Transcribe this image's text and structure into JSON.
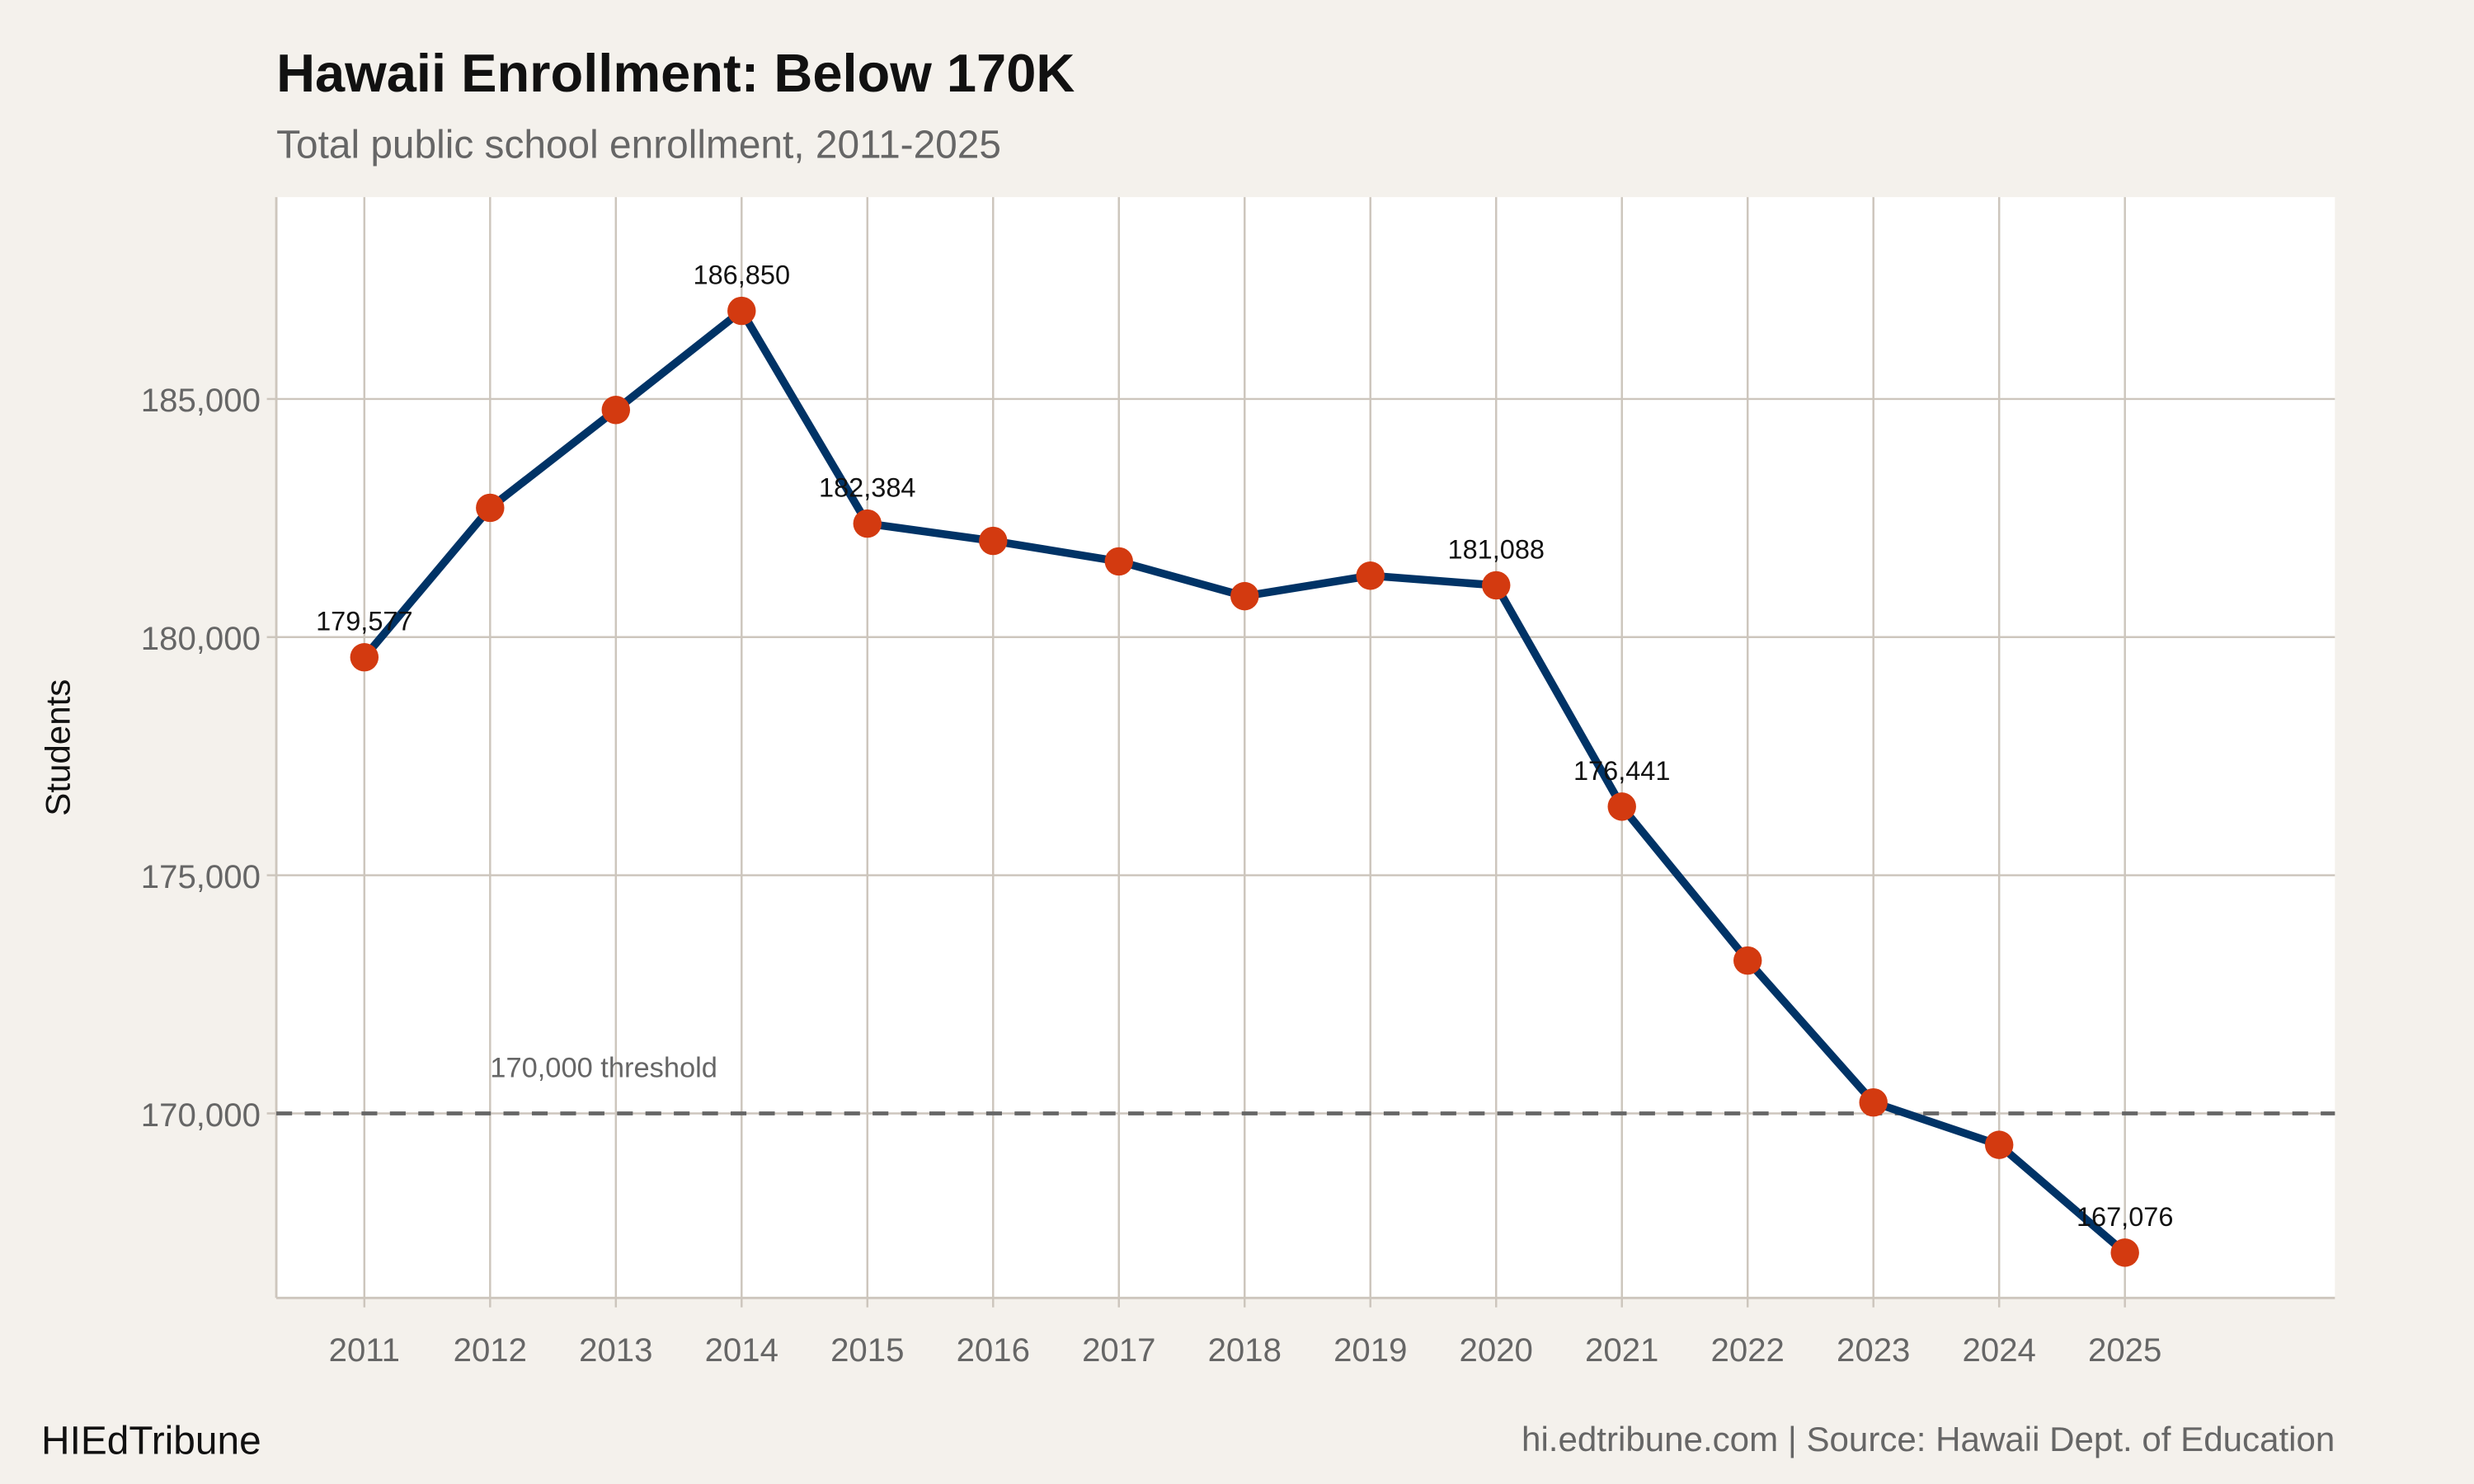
{
  "title": "Hawaii Enrollment: Below 170K",
  "subtitle": "Total public school enrollment, 2011-2025",
  "footer_left": "HIEdTribune",
  "footer_right": "hi.edtribune.com | Source: Hawaii Dept. of Education",
  "colors": {
    "background": "#f4f1ec",
    "panel": "#ffffff",
    "grid": "#cdc6bd",
    "line": "#003366",
    "point": "#d33a10",
    "threshold": "#666666"
  },
  "chart_data": {
    "type": "line",
    "title": "Hawaii Enrollment: Below 170K",
    "subtitle": "Total public school enrollment, 2011-2025",
    "xlabel": "",
    "ylabel": "Students",
    "x": [
      2011,
      2012,
      2013,
      2014,
      2015,
      2016,
      2017,
      2018,
      2019,
      2020,
      2021,
      2022,
      2023,
      2024,
      2025
    ],
    "values": [
      179577,
      182715,
      184770,
      186850,
      182384,
      182020,
      181590,
      180860,
      181290,
      181088,
      176441,
      173210,
      170230,
      169340,
      167076
    ],
    "data_labels": {
      "2011": "179,577",
      "2014": "186,850",
      "2015": "182,384",
      "2020": "181,088",
      "2021": "176,441",
      "2025": "167,076"
    },
    "xlim": [
      2010.3,
      2026.67
    ],
    "ylim": [
      166126,
      189238
    ],
    "yticks": [
      170000,
      175000,
      180000,
      185000
    ],
    "ytick_labels": [
      "170,000",
      "175,000",
      "180,000",
      "185,000"
    ],
    "xtick_labels": [
      "2011",
      "2012",
      "2013",
      "2014",
      "2015",
      "2016",
      "2017",
      "2018",
      "2019",
      "2020",
      "2021",
      "2022",
      "2023",
      "2024",
      "2025"
    ],
    "grid": true,
    "reference_line": {
      "y": 170000,
      "label": "170,000 threshold",
      "style": "dashed"
    }
  }
}
